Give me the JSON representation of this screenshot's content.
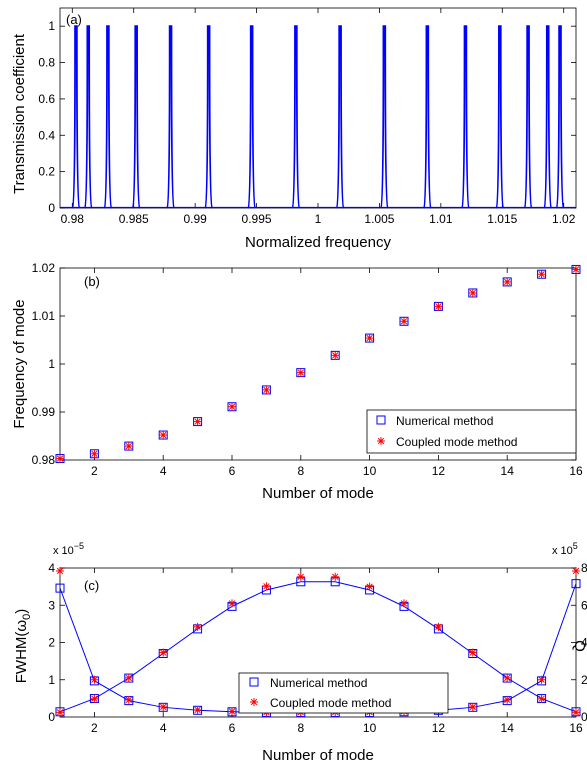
{
  "chart_data": [
    {
      "type": "line",
      "panel_label": "(a)",
      "xlabel": "Normalized frequency",
      "ylabel": "Transmission coefficient",
      "xlim": [
        0.979,
        1.021
      ],
      "ylim": [
        0,
        1.1
      ],
      "xticks": [
        0.98,
        0.985,
        0.99,
        0.995,
        1,
        1.005,
        1.01,
        1.015,
        1.02
      ],
      "xtick_labels": [
        "0.98",
        "0.985",
        "0.99",
        "0.995",
        "1",
        "1.005",
        "1.01",
        "1.015",
        "1.02"
      ],
      "yticks": [
        0,
        0.2,
        0.4,
        0.6,
        0.8,
        1
      ],
      "ytick_labels": [
        "0",
        "0.2",
        "0.4",
        "0.6",
        "0.8",
        "1"
      ],
      "series": [
        {
          "color": "#0000ff",
          "peak_x": [
            0.9803,
            0.9813,
            0.9829,
            0.9852,
            0.988,
            0.9911,
            0.9946,
            0.9982,
            1.0018,
            1.0054,
            1.0089,
            1.012,
            1.0148,
            1.0171,
            1.0187,
            1.0197
          ],
          "peak_y": 1
        }
      ],
      "grid": false
    },
    {
      "type": "scatter",
      "panel_label": "(b)",
      "xlabel": "Number of mode",
      "ylabel": "Frequency of mode",
      "xlim": [
        1,
        16
      ],
      "ylim": [
        0.98,
        1.02
      ],
      "xticks": [
        2,
        4,
        6,
        8,
        10,
        12,
        14,
        16
      ],
      "xtick_labels": [
        "2",
        "4",
        "6",
        "8",
        "10",
        "12",
        "14",
        "16"
      ],
      "yticks": [
        0.98,
        0.99,
        1,
        1.01,
        1.02
      ],
      "ytick_labels": [
        "0.98",
        "0.99",
        "1",
        "1.01",
        "1.02"
      ],
      "x": [
        1,
        2,
        3,
        4,
        5,
        6,
        7,
        8,
        9,
        10,
        11,
        12,
        13,
        14,
        15,
        16
      ],
      "series": [
        {
          "name": "Numerical method",
          "marker": "square",
          "color": "#0000ff",
          "values": [
            0.9803,
            0.9813,
            0.9829,
            0.9852,
            0.988,
            0.9911,
            0.9946,
            0.9982,
            1.0018,
            1.0054,
            1.0089,
            1.012,
            1.0148,
            1.0171,
            1.0187,
            1.0197
          ]
        },
        {
          "name": "Coupled mode method",
          "marker": "asterisk",
          "color": "#ff0000",
          "values": [
            0.9803,
            0.9813,
            0.9829,
            0.9852,
            0.988,
            0.9911,
            0.9946,
            0.9982,
            1.0018,
            1.0054,
            1.0089,
            1.012,
            1.0148,
            1.0171,
            1.0187,
            1.0197
          ]
        }
      ],
      "legend": "bottom-right",
      "grid": false
    },
    {
      "type": "line",
      "panel_label": "(c)",
      "xlabel": "Number of mode",
      "ylabel_left_prefix": "FWHM(ω",
      "ylabel_left_sub": "0",
      "ylabel_left_suffix": ")",
      "ylabel_right": "Q",
      "xlim": [
        1,
        16
      ],
      "ylim_left": [
        0,
        4e-05
      ],
      "ylim_right": [
        0,
        800000
      ],
      "left_exponent_base": "x 10",
      "left_exponent_power": "−5",
      "right_exponent_base": "x 10",
      "right_exponent_power": "5",
      "xticks": [
        2,
        4,
        6,
        8,
        10,
        12,
        14,
        16
      ],
      "xtick_labels": [
        "2",
        "4",
        "6",
        "8",
        "10",
        "12",
        "14",
        "16"
      ],
      "yticks_left": [
        0,
        1e-05,
        2e-05,
        3e-05,
        4e-05
      ],
      "ytick_labels_left": [
        "0",
        "1",
        "2",
        "3",
        "4"
      ],
      "yticks_right": [
        0,
        200000,
        400000,
        600000,
        800000
      ],
      "ytick_labels_right": [
        "0",
        "2",
        "4",
        "6",
        "8"
      ],
      "x": [
        1,
        2,
        3,
        4,
        5,
        6,
        7,
        8,
        9,
        10,
        11,
        12,
        13,
        14,
        15,
        16
      ],
      "series": [
        {
          "quantity": "FWHM",
          "axis": "left",
          "line_color": "#0000ff",
          "numerical": [
            3.46e-05,
            9.7e-06,
            4.4e-06,
            2.6e-06,
            1.8e-06,
            1.4e-06,
            1.2e-06,
            1.2e-06,
            1.2e-06,
            1.2e-06,
            1.4e-06,
            1.8e-06,
            2.6e-06,
            4.4e-06,
            9.7e-06,
            3.58e-05
          ],
          "coupled_mode": [
            3.92e-05,
            1e-05,
            4.6e-06,
            2.7e-06,
            1.9e-06,
            1.5e-06,
            1.3e-06,
            1.3e-06,
            1.3e-06,
            1.3e-06,
            1.5e-06,
            1.9e-06,
            2.7e-06,
            4.6e-06,
            1e-05,
            3.92e-05
          ]
        },
        {
          "quantity": "Q",
          "axis": "right",
          "line_color": "#0000ff",
          "numerical": [
            28000,
            99000,
            209000,
            341000,
            473000,
            594000,
            682000,
            726000,
            726000,
            682000,
            594000,
            473000,
            341000,
            209000,
            99000,
            28000
          ],
          "coupled_mode": [
            25000,
            98000,
            210000,
            346000,
            484000,
            610000,
            702000,
            753000,
            753000,
            700000,
            610000,
            484000,
            346000,
            210000,
            98000,
            25000
          ]
        }
      ],
      "legend_entries": [
        {
          "name": "Numerical method",
          "marker": "square",
          "color": "#0000ff"
        },
        {
          "name": "Coupled mode method",
          "marker": "asterisk",
          "color": "#ff0000"
        }
      ],
      "legend": "center",
      "grid": false
    }
  ]
}
